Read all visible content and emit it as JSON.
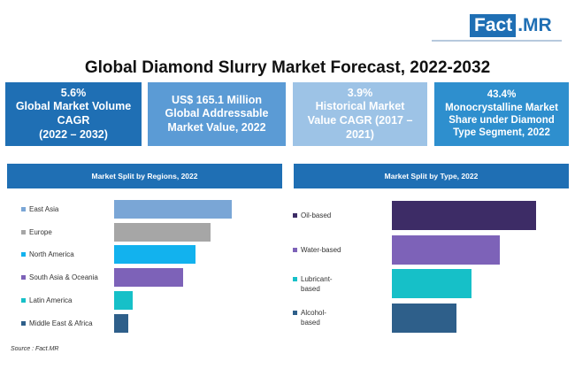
{
  "logo": {
    "fact": "Fact",
    "mr": ".MR"
  },
  "title": "Global Diamond Slurry Market Forecast, 2022-2032",
  "boxes": [
    {
      "line1": "5.6%",
      "line2": "Global Market Volume",
      "line3": "CAGR",
      "line4": "(2022 – 2032)",
      "color": "#1f6fb4"
    },
    {
      "line1": "US$ 165.1 Million",
      "line2": "Global Addressable",
      "line3": "Market Value, 2022",
      "color": "#5b9bd5"
    },
    {
      "line1": "3.9%",
      "line2": "Historical Market",
      "line3": "Value CAGR (2017 –",
      "line4": "2021)",
      "color": "#9dc3e6"
    },
    {
      "line1": "43.4%",
      "line2": "Monocrystalline  Market",
      "line3": "Share under Diamond",
      "line4": "Type Segment, 2022",
      "color": "#2e8fce"
    }
  ],
  "chart_data": [
    {
      "type": "bar",
      "orientation": "horizontal",
      "title": "Market Split by Regions, 2022",
      "categories": [
        "East Asia",
        "Europe",
        "North America",
        "South Asia & Oceania",
        "Latin America",
        "Middle East & Africa"
      ],
      "values": [
        100,
        82,
        69,
        59,
        16,
        12
      ],
      "colors": [
        "#7aa6d6",
        "#a6a6a6",
        "#12b2ee",
        "#7d62b8",
        "#16c0c8",
        "#2e5f8a"
      ],
      "xlabel": "",
      "ylabel": "",
      "xlim": [
        0,
        100
      ]
    },
    {
      "type": "bar",
      "orientation": "horizontal",
      "title": "Market Split by Type, 2022",
      "categories": [
        "Oil-based",
        "Water-based",
        "Lubricant-based",
        "Alcohol-based"
      ],
      "label_lines": [
        [
          "Oil-based"
        ],
        [
          "Water-based"
        ],
        [
          "Lubricant-",
          "based"
        ],
        [
          "Alcohol-",
          "based"
        ]
      ],
      "values": [
        100,
        75,
        55,
        45
      ],
      "colors": [
        "#3d2c66",
        "#7d62b8",
        "#16c0c8",
        "#2e5f8a"
      ],
      "xlabel": "",
      "ylabel": "",
      "xlim": [
        0,
        100
      ]
    }
  ],
  "source": "Source : Fact.MR"
}
